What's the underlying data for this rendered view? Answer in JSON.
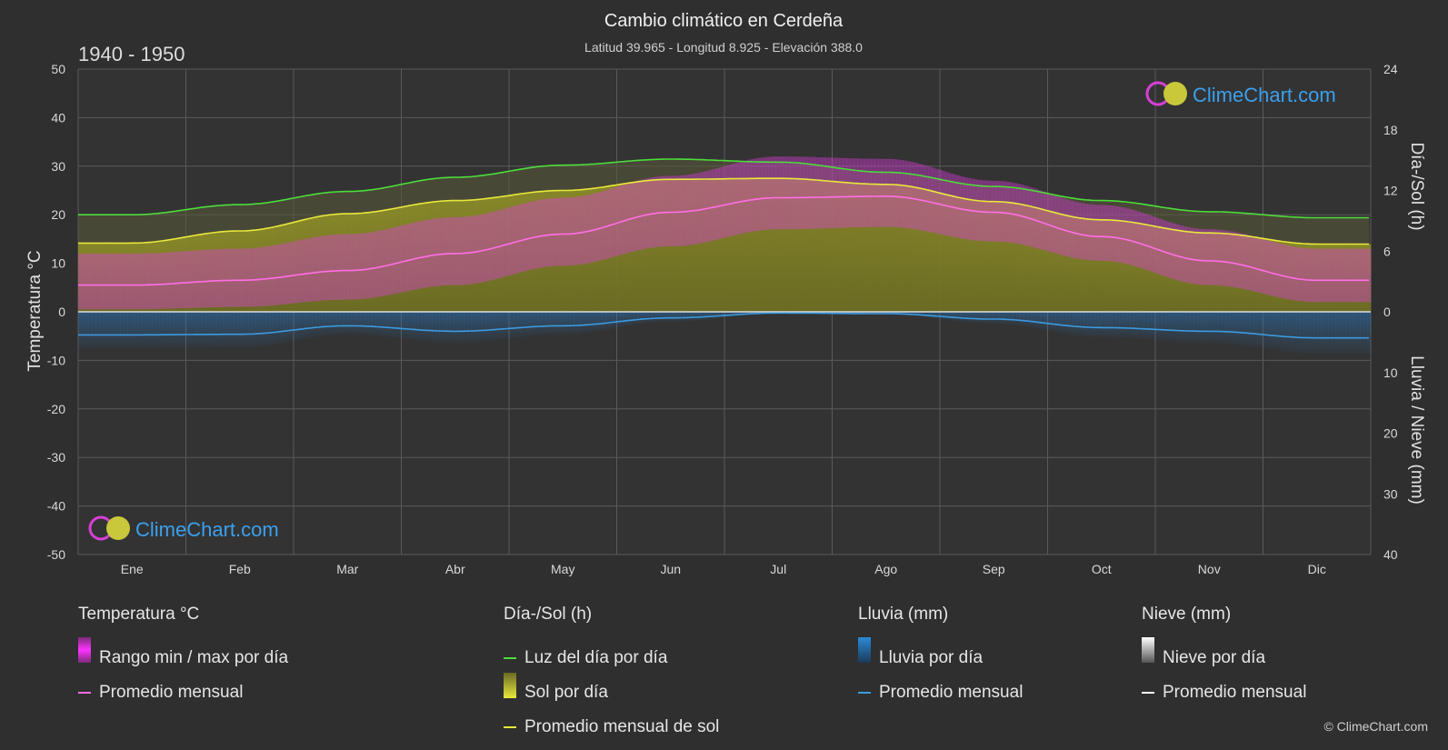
{
  "header": {
    "title": "Cambio climático en Cerdeña",
    "subtitle": "Latitud 39.965 - Longitud 8.925 - Elevación 388.0",
    "period": "1940 - 1950"
  },
  "watermark": {
    "text": "ClimeChart.com"
  },
  "copyright": "© ClimeChart.com",
  "colors": {
    "background": "#2f2f2f",
    "grid": "#5a5a5a",
    "temp_range": "#e63ce6",
    "temp_avg": "#ff6ee6",
    "daylight": "#4ddc3a",
    "sunshine_fill": "#9a9a2a",
    "sunshine_avg": "#e8e83c",
    "rain": "#2a8ad8",
    "rain_avg": "#3c9ae0",
    "snow": "#d8d8d8",
    "snow_avg": "#ffffff",
    "watermark": "#3aa0ee"
  },
  "chart_data": {
    "type": "line",
    "title": "Cambio climático en Cerdeña",
    "categories": [
      "Ene",
      "Feb",
      "Mar",
      "Abr",
      "May",
      "Jun",
      "Jul",
      "Ago",
      "Sep",
      "Oct",
      "Nov",
      "Dic"
    ],
    "axes": {
      "left": {
        "label": "Temperatura °C",
        "min": -50,
        "max": 50,
        "ticks": [
          50,
          40,
          30,
          20,
          10,
          0,
          -10,
          -20,
          -30,
          -40,
          -50
        ]
      },
      "right_top": {
        "label": "Día-/Sol (h)",
        "min": 0,
        "max": 24,
        "ticks": [
          24,
          18,
          12,
          6,
          0
        ]
      },
      "right_bottom": {
        "label": "Lluvia / Nieve (mm)",
        "min": 0,
        "max": 40,
        "ticks": [
          10,
          20,
          30,
          40
        ]
      }
    },
    "grid": true,
    "series": [
      {
        "name": "Luz del día por día",
        "unit": "h",
        "values": [
          9.6,
          10.6,
          11.9,
          13.3,
          14.5,
          15.1,
          14.8,
          13.8,
          12.4,
          11.0,
          9.9,
          9.3
        ]
      },
      {
        "name": "Promedio mensual de sol",
        "unit": "h",
        "values": [
          6.8,
          8.0,
          9.7,
          11.0,
          12.0,
          13.1,
          13.2,
          12.6,
          10.9,
          9.1,
          7.8,
          6.7
        ]
      },
      {
        "name": "Promedio mensual",
        "unit": "°C",
        "values": [
          5.5,
          6.5,
          8.5,
          12.0,
          16.0,
          20.5,
          23.5,
          23.8,
          20.5,
          15.5,
          10.5,
          6.5
        ]
      },
      {
        "name": "Lluvia promedio mensual",
        "unit": "mm",
        "values": [
          3.8,
          3.7,
          2.3,
          3.2,
          2.3,
          1.0,
          0.2,
          0.3,
          1.2,
          2.6,
          3.2,
          4.3
        ]
      },
      {
        "name": "Nieve promedio mensual",
        "unit": "mm",
        "values": [
          0,
          0,
          0,
          0,
          0,
          0,
          0,
          0,
          0,
          0,
          0,
          0
        ]
      }
    ],
    "temp_range": {
      "name": "Rango min / max por día",
      "min": [
        0.5,
        1.0,
        2.5,
        5.5,
        9.5,
        13.5,
        17.0,
        17.5,
        14.5,
        10.5,
        5.5,
        2.0
      ],
      "max": [
        12.0,
        13.0,
        16.0,
        19.5,
        23.5,
        28.0,
        32.0,
        31.5,
        27.0,
        22.0,
        17.0,
        13.0
      ]
    }
  },
  "legend": {
    "groups": [
      {
        "title": "Temperatura °C",
        "items": [
          {
            "label": "Rango min / max por día",
            "swatch": "box",
            "color": "#e63ce6"
          },
          {
            "label": "Promedio mensual",
            "swatch": "line",
            "color": "#ff6ee6"
          }
        ]
      },
      {
        "title": "Día-/Sol (h)",
        "items": [
          {
            "label": "Luz del día por día",
            "swatch": "line",
            "color": "#4ddc3a"
          },
          {
            "label": "Sol por día",
            "swatch": "box",
            "color": "#c8c83a"
          },
          {
            "label": "Promedio mensual de sol",
            "swatch": "line",
            "color": "#e8e83c"
          }
        ]
      },
      {
        "title": "Lluvia (mm)",
        "items": [
          {
            "label": "Lluvia por día",
            "swatch": "box",
            "color": "#2a8ad8"
          },
          {
            "label": "Promedio mensual",
            "swatch": "line",
            "color": "#3c9ae0"
          }
        ]
      },
      {
        "title": "Nieve (mm)",
        "items": [
          {
            "label": "Nieve por día",
            "swatch": "box",
            "color": "#d8d8d8"
          },
          {
            "label": "Promedio mensual",
            "swatch": "line",
            "color": "#ffffff"
          }
        ]
      }
    ]
  }
}
